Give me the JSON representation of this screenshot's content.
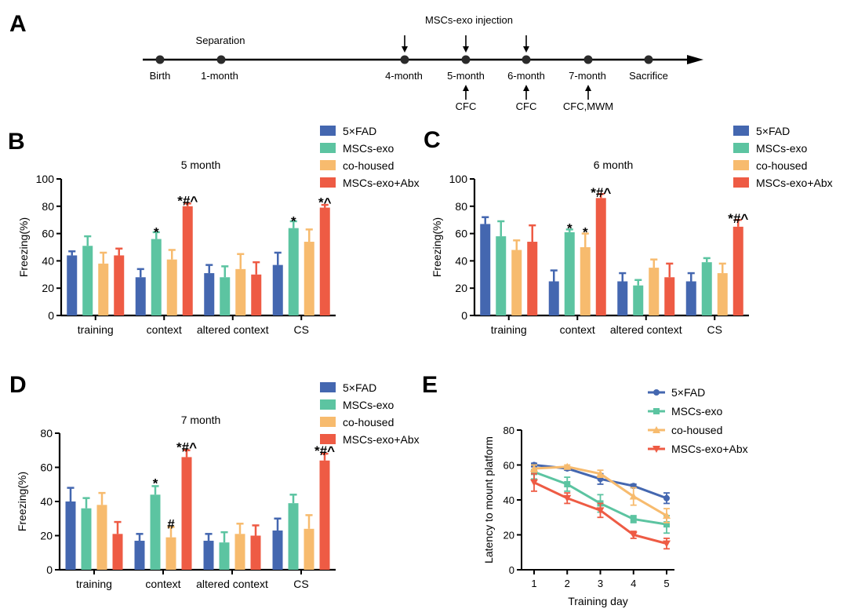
{
  "panel_labels": {
    "a": "A",
    "b": "B",
    "c": "C",
    "d": "D",
    "e": "E"
  },
  "timeline": {
    "points": [
      "Birth",
      "1-month",
      "4-month",
      "5-month",
      "6-month",
      "7-month",
      "Sacrifice"
    ],
    "above_labels": {
      "separation": "Separation",
      "injection": "MSCs-exo injection"
    },
    "tests": {
      "t5": "CFC",
      "t6": "CFC",
      "t7": "CFC,MWM"
    }
  },
  "colors": {
    "fad": "#4467b0",
    "exo": "#5cc4a1",
    "cohoused": "#f7bb6e",
    "abx": "#ee5b44",
    "axis": "#000000"
  },
  "legend": [
    "5×FAD",
    "MSCs-exo",
    "co-housed",
    "MSCs-exo+Abx"
  ],
  "chart_data": [
    {
      "type": "bar",
      "panel": "B",
      "title": "5 month",
      "ylabel": "Freezing(%)",
      "ylim": [
        0,
        100
      ],
      "yticks": [
        "0",
        "20",
        "40",
        "60",
        "80",
        "100"
      ],
      "categories": [
        "training",
        "context",
        "altered context",
        "CS"
      ],
      "series": [
        {
          "name": "5×FAD",
          "values": [
            44,
            28,
            31,
            37
          ],
          "errors": [
            3,
            6,
            6,
            9
          ]
        },
        {
          "name": "MSCs-exo",
          "values": [
            51,
            56,
            28,
            64
          ],
          "errors": [
            7,
            5,
            8,
            5
          ]
        },
        {
          "name": "co-housed",
          "values": [
            38,
            41,
            34,
            54
          ],
          "errors": [
            8,
            7,
            11,
            9
          ]
        },
        {
          "name": "MSCs-exo+Abx",
          "values": [
            44,
            80,
            30,
            79
          ],
          "errors": [
            5,
            2,
            9,
            2
          ]
        }
      ],
      "annotations": [
        {
          "text": "*",
          "category": 1,
          "series": 1,
          "value": 60
        },
        {
          "text": "*#^",
          "category": 1,
          "series": 3,
          "value": 83
        },
        {
          "text": "*",
          "category": 3,
          "series": 1,
          "value": 68
        },
        {
          "text": "*^",
          "category": 3,
          "series": 3,
          "value": 82
        }
      ]
    },
    {
      "type": "bar",
      "panel": "C",
      "title": "6 month",
      "ylabel": "Freezing(%)",
      "ylim": [
        0,
        100
      ],
      "yticks": [
        "0",
        "20",
        "40",
        "60",
        "80",
        "100"
      ],
      "categories": [
        "training",
        "context",
        "altered context",
        "CS"
      ],
      "series": [
        {
          "name": "5×FAD",
          "values": [
            67,
            25,
            25,
            25
          ],
          "errors": [
            5,
            8,
            6,
            6
          ]
        },
        {
          "name": "MSCs-exo",
          "values": [
            58,
            61,
            22,
            39
          ],
          "errors": [
            11,
            2,
            4,
            3
          ]
        },
        {
          "name": "co-housed",
          "values": [
            48,
            50,
            35,
            31
          ],
          "errors": [
            7,
            10,
            6,
            7
          ]
        },
        {
          "name": "MSCs-exo+Abx",
          "values": [
            54,
            86,
            28,
            65
          ],
          "errors": [
            12,
            3,
            10,
            5
          ]
        }
      ],
      "annotations": [
        {
          "text": "*",
          "category": 1,
          "series": 1,
          "value": 63
        },
        {
          "text": "*",
          "category": 1,
          "series": 2,
          "value": 60
        },
        {
          "text": "*#^",
          "category": 1,
          "series": 3,
          "value": 89
        },
        {
          "text": "*#^",
          "category": 3,
          "series": 3,
          "value": 70
        }
      ]
    },
    {
      "type": "bar",
      "panel": "D",
      "title": "7 month",
      "ylabel": "Freezing(%)",
      "ylim": [
        0,
        80
      ],
      "yticks": [
        "0",
        "20",
        "40",
        "60",
        "80"
      ],
      "categories": [
        "training",
        "context",
        "altered context",
        "CS"
      ],
      "series": [
        {
          "name": "5×FAD",
          "values": [
            40,
            17,
            17,
            23
          ],
          "errors": [
            8,
            4,
            4,
            7
          ]
        },
        {
          "name": "MSCs-exo",
          "values": [
            36,
            44,
            16,
            39
          ],
          "errors": [
            6,
            5,
            6,
            5
          ]
        },
        {
          "name": "co-housed",
          "values": [
            38,
            19,
            21,
            24
          ],
          "errors": [
            7,
            6,
            6,
            8
          ]
        },
        {
          "name": "MSCs-exo+Abx",
          "values": [
            21,
            66,
            20,
            64
          ],
          "errors": [
            7,
            4,
            6,
            4
          ]
        }
      ],
      "annotations": [
        {
          "text": "*",
          "category": 1,
          "series": 1,
          "value": 50
        },
        {
          "text": "#",
          "category": 1,
          "series": 2,
          "value": 26
        },
        {
          "text": "*#^",
          "category": 1,
          "series": 3,
          "value": 71
        },
        {
          "text": "*#^",
          "category": 3,
          "series": 3,
          "value": 69
        }
      ]
    },
    {
      "type": "line",
      "panel": "E",
      "xlabel": "Training day",
      "ylabel": "Latency to mount platform",
      "x": [
        1,
        2,
        3,
        4,
        5
      ],
      "xlim": [
        1,
        5
      ],
      "ylim": [
        0,
        80
      ],
      "xticks": [
        "1",
        "2",
        "3",
        "4",
        "5"
      ],
      "yticks": [
        "0",
        "20",
        "40",
        "60",
        "80"
      ],
      "series": [
        {
          "name": "5×FAD",
          "values": [
            60,
            58,
            52,
            48,
            41
          ],
          "errors": [
            1,
            1,
            3,
            1,
            3
          ]
        },
        {
          "name": "MSCs-exo",
          "values": [
            56,
            49,
            38,
            29,
            26
          ],
          "errors": [
            4,
            4,
            5,
            2,
            5
          ]
        },
        {
          "name": "co-housed",
          "values": [
            58,
            59,
            55,
            42,
            31
          ],
          "errors": [
            2,
            1,
            2,
            5,
            4
          ]
        },
        {
          "name": "MSCs-exo+Abx",
          "values": [
            50,
            41,
            34,
            20,
            15
          ],
          "errors": [
            5,
            3,
            4,
            2,
            3
          ]
        }
      ]
    }
  ]
}
